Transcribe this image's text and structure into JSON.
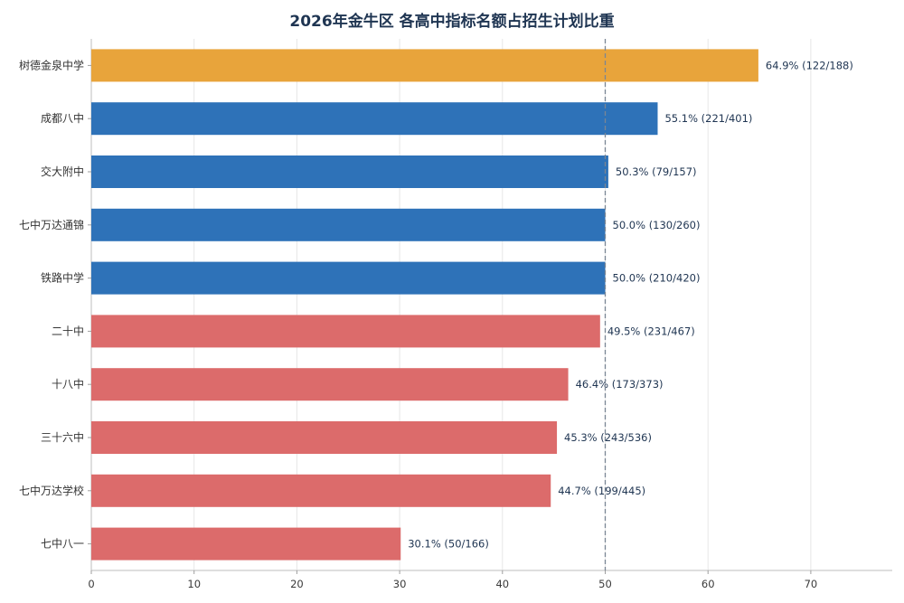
{
  "chart_data": {
    "type": "bar",
    "orientation": "horizontal",
    "title": "2026年金牛区 各高中指标名额占招生计划比重",
    "categories": [
      "树德金泉中学",
      "成都八中",
      "交大附中",
      "七中万达通锦",
      "铁路中学",
      "二十中",
      "十八中",
      "三十六中",
      "七中万达学校",
      "七中八一"
    ],
    "values": [
      64.9,
      55.1,
      50.3,
      50.0,
      50.0,
      49.5,
      46.4,
      45.3,
      44.7,
      30.1
    ],
    "value_labels": [
      "64.9%  (122/188)",
      "55.1%  (221/401)",
      "50.3%  (79/157)",
      "50.0%  (130/260)",
      "50.0%  (210/420)",
      "49.5%  (231/467)",
      "46.4%  (173/373)",
      "45.3%  (243/536)",
      "44.7%  (199/445)",
      "30.1%  (50/166)"
    ],
    "bar_colors": [
      "#e8a43b",
      "#2e72b8",
      "#2e72b8",
      "#2e72b8",
      "#2e72b8",
      "#dc6b6b",
      "#dc6b6b",
      "#dc6b6b",
      "#dc6b6b",
      "#dc6b6b"
    ],
    "xlim": [
      0,
      78
    ],
    "xticks": [
      0,
      10,
      20,
      30,
      40,
      50,
      60,
      70
    ],
    "reference_line": {
      "x": 50,
      "style": "dashed",
      "color": "#7a8694"
    },
    "grid": "vertical",
    "xlabel": "",
    "ylabel": ""
  }
}
